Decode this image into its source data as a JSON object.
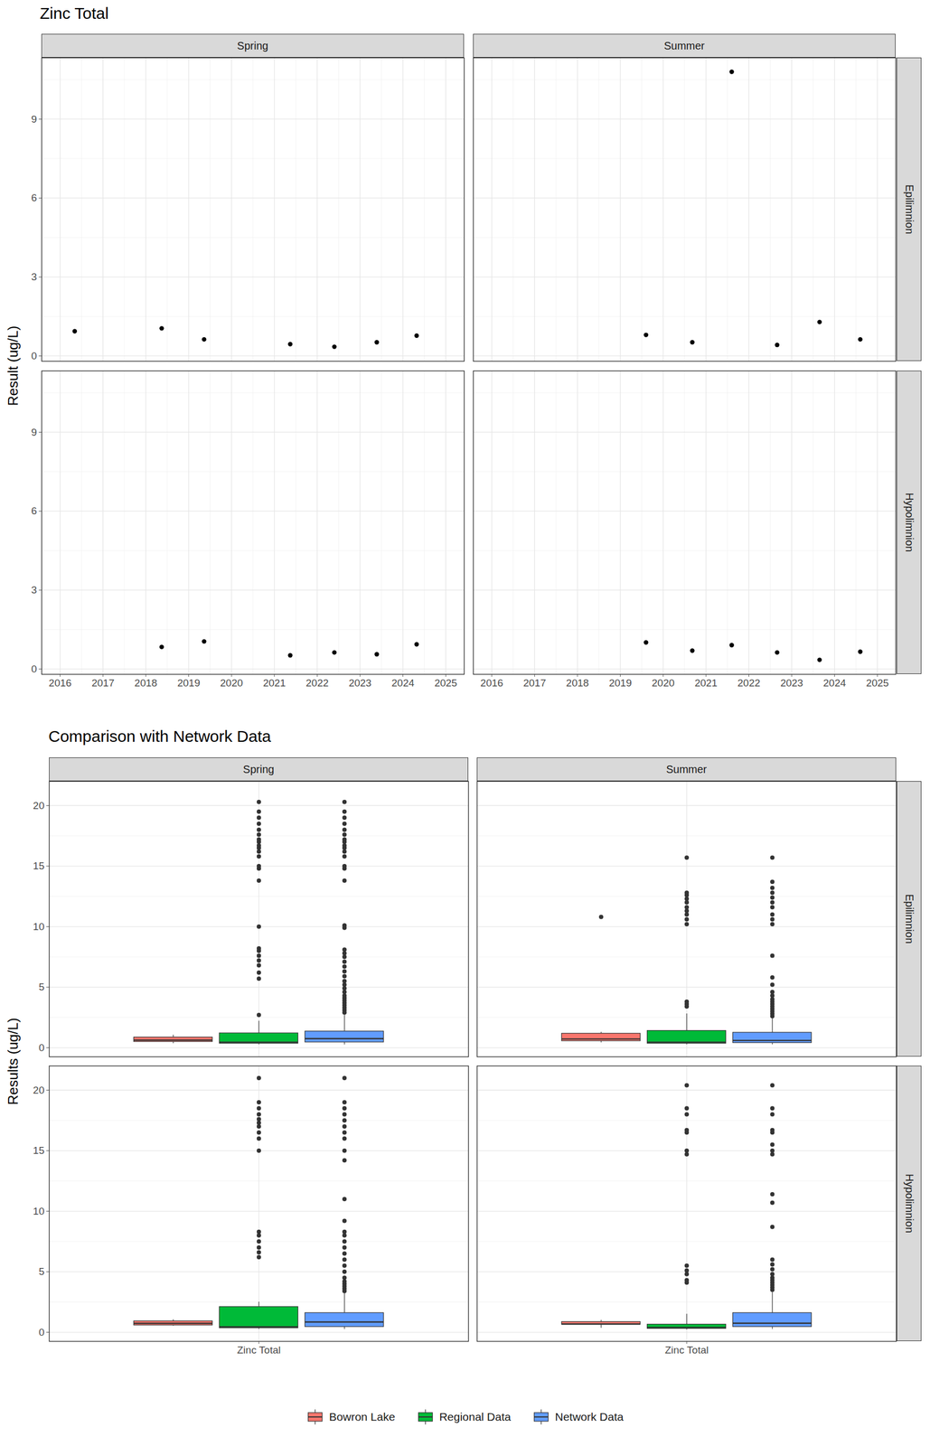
{
  "chart_data": [
    {
      "type": "scatter",
      "title": "Zinc Total",
      "y_label": "Result (ug/L)",
      "facet_columns": [
        "Spring",
        "Summer"
      ],
      "facet_rows": [
        "Epilimnion",
        "Hypolimnion"
      ],
      "xlim": [
        2015.57,
        2025.43
      ],
      "xticks": [
        2016,
        2017,
        2018,
        2019,
        2020,
        2021,
        2022,
        2023,
        2024,
        2025
      ],
      "ylim": [
        -0.2,
        11.33
      ],
      "yticks": [
        0,
        3,
        6,
        9
      ],
      "grid": true,
      "color": "#000000",
      "panels": [
        {
          "column": "Spring",
          "row": "Epilimnion",
          "x": [
            2016.34,
            2018.37,
            2019.36,
            2021.37,
            2022.4,
            2023.39,
            2024.32
          ],
          "y": [
            0.94,
            1.05,
            0.63,
            0.45,
            0.35,
            0.52,
            0.77
          ]
        },
        {
          "column": "Summer",
          "row": "Epilimnion",
          "x": [
            2019.6,
            2020.68,
            2021.6,
            2022.66,
            2023.65,
            2024.6
          ],
          "y": [
            0.8,
            0.52,
            10.8,
            0.42,
            1.29,
            0.63
          ]
        },
        {
          "column": "Spring",
          "row": "Hypolimnion",
          "x": [
            2018.37,
            2019.36,
            2021.37,
            2022.4,
            2023.39,
            2024.32
          ],
          "y": [
            0.84,
            1.05,
            0.52,
            0.63,
            0.56,
            0.94
          ]
        },
        {
          "column": "Summer",
          "row": "Hypolimnion",
          "x": [
            2019.6,
            2020.68,
            2021.6,
            2022.66,
            2023.65,
            2024.6
          ],
          "y": [
            1.01,
            0.7,
            0.91,
            0.63,
            0.35,
            0.66
          ]
        }
      ]
    },
    {
      "type": "boxplot",
      "title": "Comparison with Network Data",
      "y_label": "Results (ug/L)",
      "facet_columns": [
        "Spring",
        "Summer"
      ],
      "facet_rows": [
        "Epilimnion",
        "Hypolimnion"
      ],
      "categories": [
        "Zinc Total"
      ],
      "ylim": [
        -0.75,
        22.0
      ],
      "yticks": [
        0,
        5,
        10,
        15,
        20
      ],
      "grid": true,
      "legend": "bottom",
      "series": [
        {
          "name": "Bowron Lake",
          "color": "#F8766D"
        },
        {
          "name": "Regional Data",
          "color": "#00BA38"
        },
        {
          "name": "Network Data",
          "color": "#619CFF"
        }
      ],
      "panels": [
        {
          "column": "Spring",
          "row": "Epilimnion",
          "boxes": [
            [
              {
                "whisker_low": 0.35,
                "q1": 0.49,
                "median": 0.63,
                "q3": 0.86,
                "whisker_high": 1.05,
                "outliers": []
              },
              {
                "whisker_low": 0.25,
                "q1": 0.35,
                "median": 0.45,
                "q3": 1.2,
                "whisker_high": 2.2,
                "outliers": [
                  2.7,
                  5.7,
                  6.2,
                  6.8,
                  7.2,
                  7.6,
                  8.0,
                  8.2,
                  10.0,
                  13.8,
                  14.8,
                  15.0,
                  15.8,
                  16.2,
                  16.5,
                  16.7,
                  17.0,
                  17.2,
                  17.6,
                  18.0,
                  18.5,
                  19.0,
                  19.5,
                  20.3
                ]
              },
              {
                "whisker_low": 0.25,
                "q1": 0.45,
                "median": 0.75,
                "q3": 1.35,
                "whisker_high": 2.7,
                "outliers": [
                  2.9,
                  3.1,
                  3.3,
                  3.5,
                  3.7,
                  3.9,
                  4.1,
                  4.3,
                  4.6,
                  4.9,
                  5.2,
                  5.5,
                  5.9,
                  6.3,
                  6.7,
                  7.1,
                  7.5,
                  7.8,
                  8.1,
                  9.9,
                  10.1,
                  13.8,
                  14.8,
                  15.0,
                  15.8,
                  16.2,
                  16.5,
                  16.7,
                  17.0,
                  17.2,
                  17.6,
                  18.0,
                  18.5,
                  19.0,
                  19.5,
                  20.3
                ]
              }
            ]
          ]
        },
        {
          "column": "Summer",
          "row": "Epilimnion",
          "boxes": [
            [
              {
                "whisker_low": 0.42,
                "q1": 0.55,
                "median": 0.72,
                "q3": 1.17,
                "whisker_high": 1.29,
                "outliers": [
                  10.8
                ]
              },
              {
                "whisker_low": 0.25,
                "q1": 0.35,
                "median": 0.45,
                "q3": 1.4,
                "whisker_high": 2.8,
                "outliers": [
                  3.4,
                  3.6,
                  3.8,
                  10.2,
                  10.6,
                  11.0,
                  11.3,
                  11.6,
                  12.0,
                  12.3,
                  12.6,
                  12.8,
                  15.7
                ]
              },
              {
                "whisker_low": 0.25,
                "q1": 0.4,
                "median": 0.6,
                "q3": 1.25,
                "whisker_high": 2.4,
                "outliers": [
                  2.6,
                  2.8,
                  3.0,
                  3.2,
                  3.4,
                  3.6,
                  3.8,
                  4.0,
                  4.3,
                  4.6,
                  5.2,
                  5.8,
                  7.6,
                  10.2,
                  10.6,
                  11.0,
                  11.6,
                  12.0,
                  12.4,
                  12.8,
                  13.2,
                  13.7,
                  15.7
                ]
              }
            ]
          ]
        },
        {
          "column": "Spring",
          "row": "Hypolimnion",
          "boxes": [
            [
              {
                "whisker_low": 0.52,
                "q1": 0.58,
                "median": 0.74,
                "q3": 0.92,
                "whisker_high": 1.05,
                "outliers": []
              },
              {
                "whisker_low": 0.25,
                "q1": 0.35,
                "median": 0.45,
                "q3": 2.1,
                "whisker_high": 2.5,
                "outliers": [
                  6.2,
                  6.6,
                  7.0,
                  7.5,
                  8.0,
                  8.3,
                  15.0,
                  16.0,
                  16.5,
                  17.0,
                  17.3,
                  17.6,
                  18.0,
                  18.5,
                  19.0,
                  21.0
                ]
              },
              {
                "whisker_low": 0.25,
                "q1": 0.45,
                "median": 0.85,
                "q3": 1.6,
                "whisker_high": 3.2,
                "outliers": [
                  3.4,
                  3.6,
                  3.8,
                  4.0,
                  4.2,
                  4.5,
                  5.0,
                  5.5,
                  6.0,
                  6.5,
                  7.0,
                  7.5,
                  8.0,
                  8.3,
                  9.2,
                  11.0,
                  14.2,
                  15.0,
                  16.0,
                  16.5,
                  17.0,
                  17.5,
                  18.0,
                  18.5,
                  19.0,
                  21.0
                ]
              }
            ]
          ]
        },
        {
          "column": "Summer",
          "row": "Hypolimnion",
          "boxes": [
            [
              {
                "whisker_low": 0.35,
                "q1": 0.64,
                "median": 0.68,
                "q3": 0.86,
                "whisker_high": 1.01,
                "outliers": []
              },
              {
                "whisker_low": 0.2,
                "q1": 0.3,
                "median": 0.4,
                "q3": 0.65,
                "whisker_high": 1.5,
                "outliers": [
                  4.1,
                  4.3,
                  4.8,
                  5.1,
                  5.5,
                  14.7,
                  15.0,
                  16.5,
                  16.7,
                  18.0,
                  18.5,
                  20.4
                ]
              },
              {
                "whisker_low": 0.25,
                "q1": 0.45,
                "median": 0.75,
                "q3": 1.6,
                "whisker_high": 3.3,
                "outliers": [
                  3.5,
                  3.7,
                  3.9,
                  4.1,
                  4.3,
                  4.5,
                  4.8,
                  5.2,
                  5.6,
                  6.0,
                  8.7,
                  10.7,
                  11.4,
                  14.7,
                  15.0,
                  15.5,
                  16.5,
                  16.7,
                  18.0,
                  18.5,
                  20.4
                ]
              }
            ]
          ]
        }
      ]
    }
  ]
}
